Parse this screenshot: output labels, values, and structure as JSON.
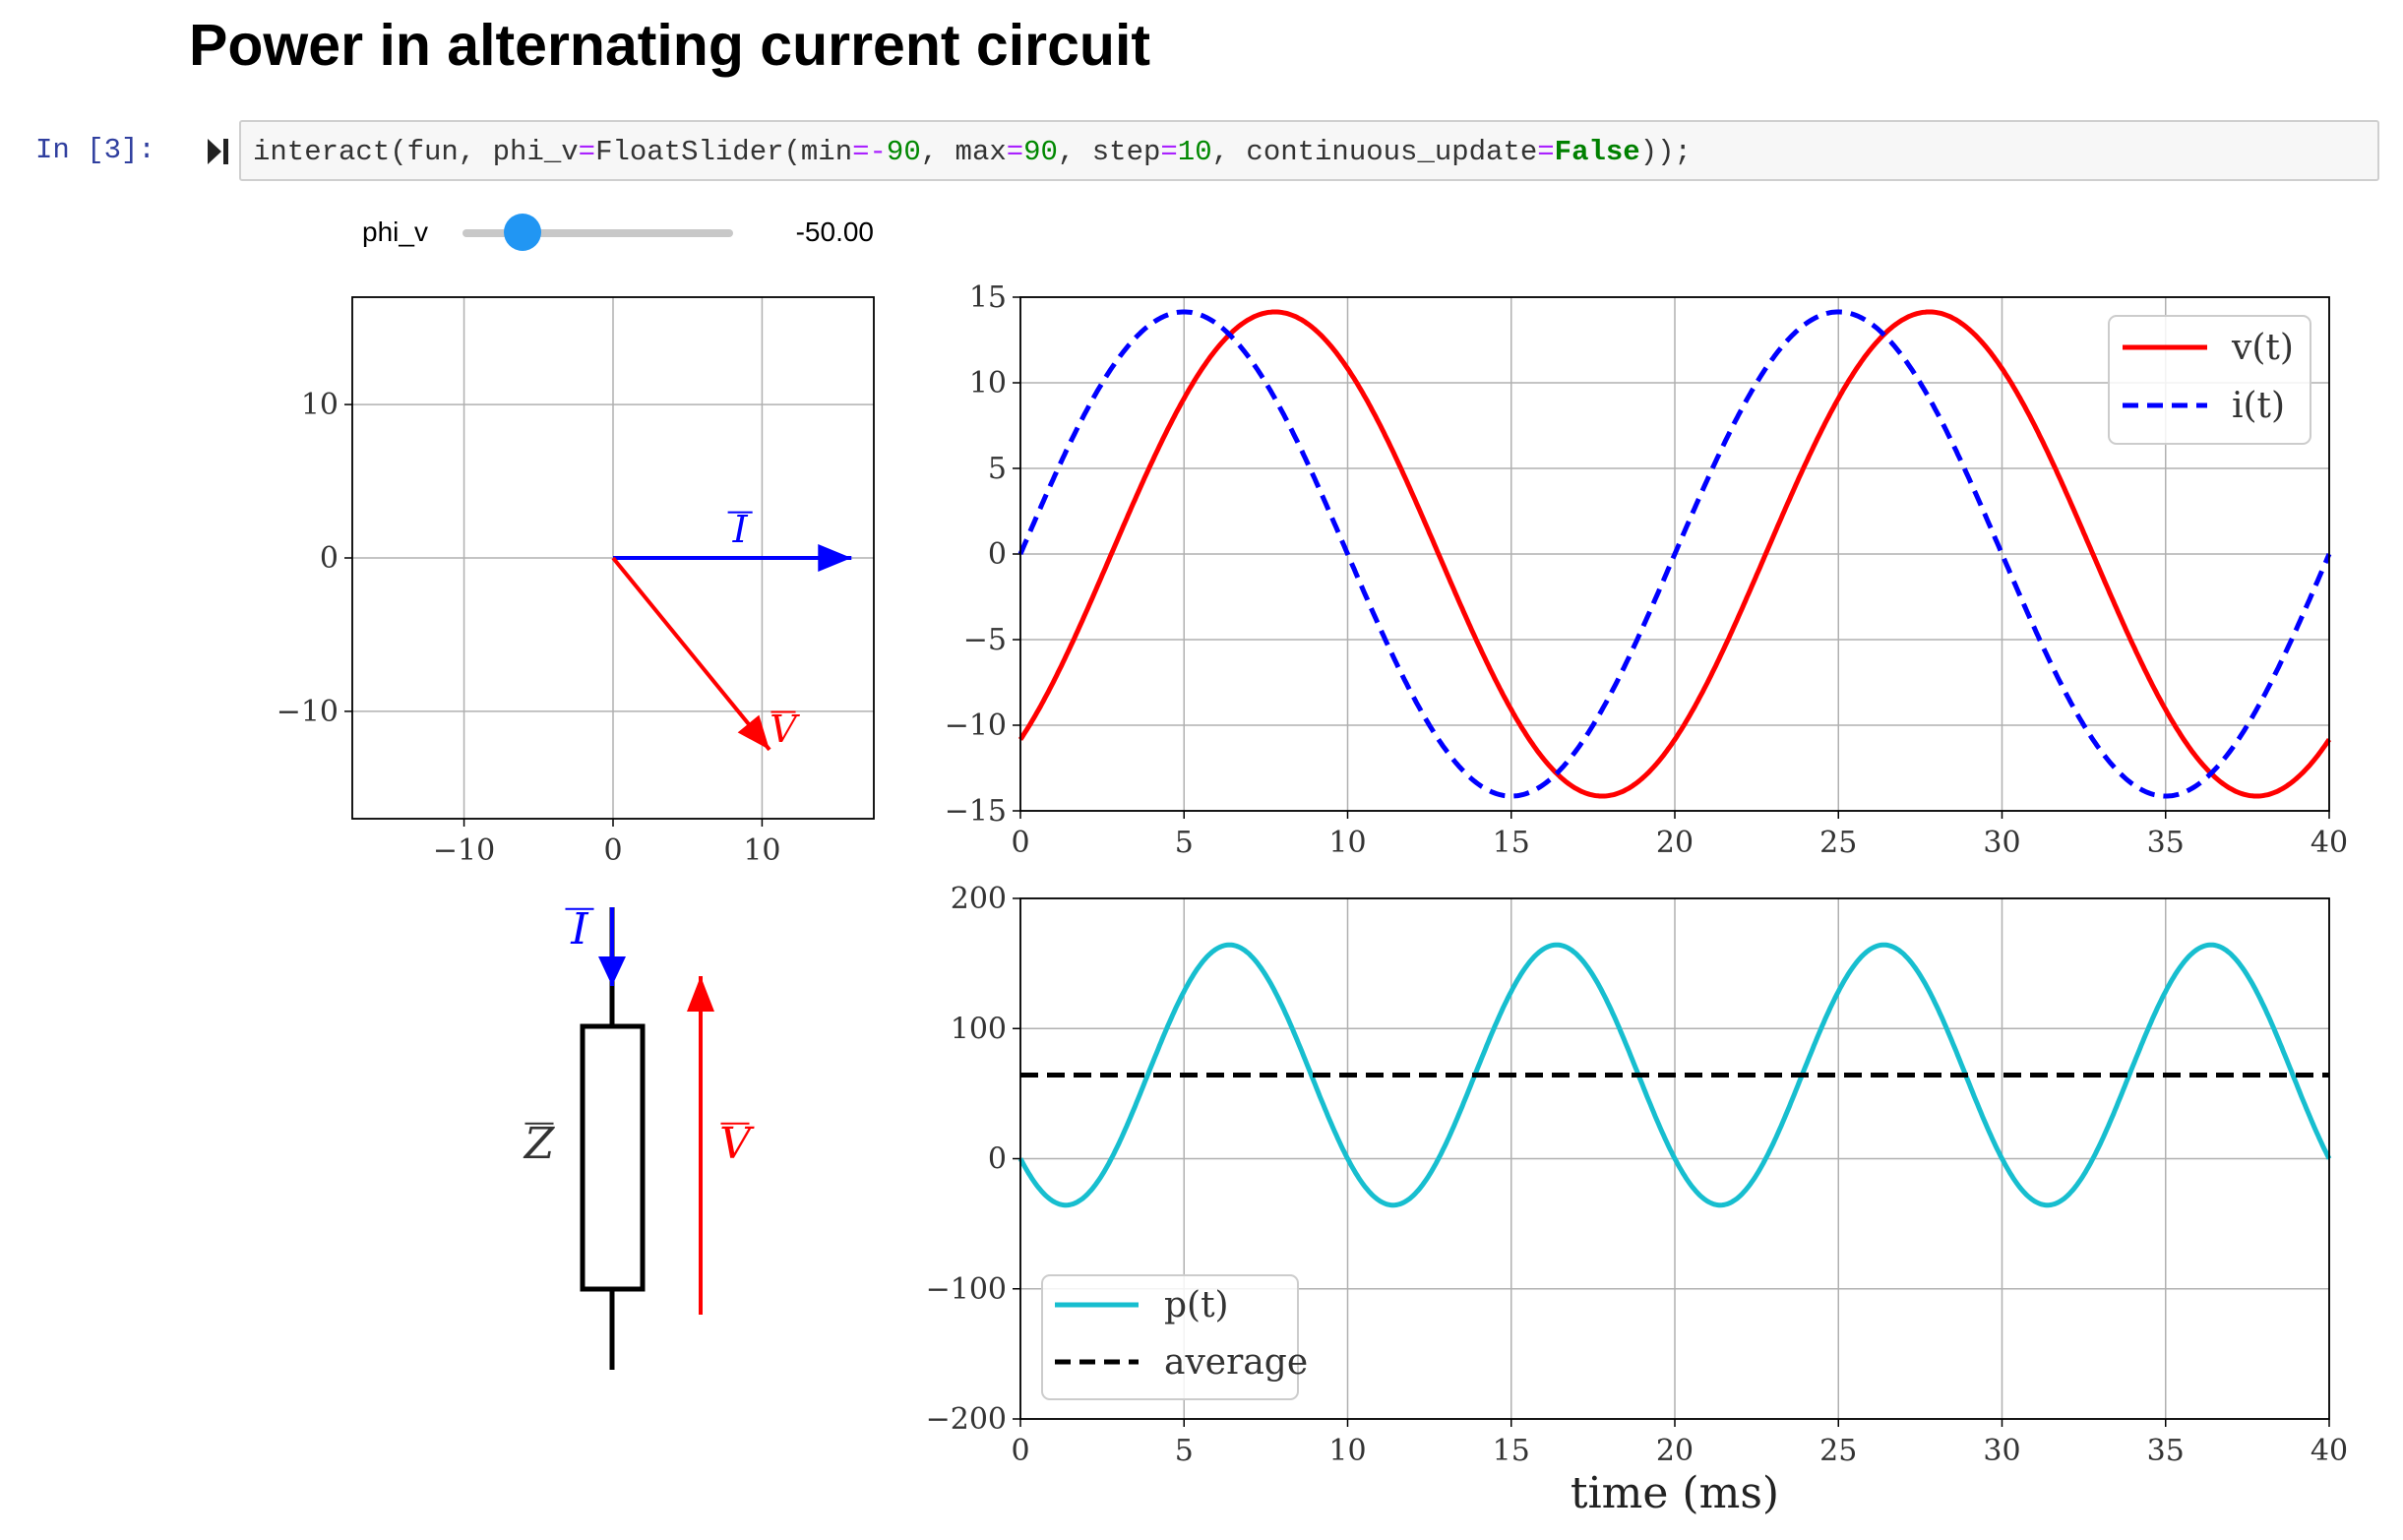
{
  "page": {
    "title": "Power in alternating current circuit"
  },
  "cell": {
    "prompt": "In [3]:",
    "code_tokens": [
      {
        "t": "interact(fun, phi_v",
        "c": ""
      },
      {
        "t": "=",
        "c": "kw"
      },
      {
        "t": "FloatSlider(min",
        "c": ""
      },
      {
        "t": "=-",
        "c": "kw"
      },
      {
        "t": "90",
        "c": "num"
      },
      {
        "t": ", max",
        "c": ""
      },
      {
        "t": "=",
        "c": "kw"
      },
      {
        "t": "90",
        "c": "num"
      },
      {
        "t": ", step",
        "c": ""
      },
      {
        "t": "=",
        "c": "kw"
      },
      {
        "t": "10",
        "c": "num"
      },
      {
        "t": ", continuous_update",
        "c": ""
      },
      {
        "t": "=",
        "c": "kw"
      },
      {
        "t": "False",
        "c": "const"
      },
      {
        "t": "));",
        "c": ""
      }
    ]
  },
  "widget": {
    "label": "phi_v",
    "value": -50,
    "readout": "-50.00",
    "min": -90,
    "max": 90,
    "step": 10
  },
  "colors": {
    "voltage": "#ff0000",
    "current": "#0000ff",
    "power": "#17becf",
    "average": "#000000",
    "slider": "#2196f3"
  },
  "chart_data": [
    {
      "type": "scatter",
      "name": "phasor-diagram",
      "xlim": [
        -17.5,
        17.5
      ],
      "ylim": [
        -17,
        17
      ],
      "xticks": [
        -10,
        0,
        10
      ],
      "xtick_labels": [
        "−10",
        "0",
        "10"
      ],
      "yticks": [
        10,
        0,
        -10
      ],
      "ytick_labels": [
        "10",
        "0",
        "−10"
      ],
      "grid": true,
      "phasors": [
        {
          "label": "I",
          "from": [
            0,
            0
          ],
          "to": [
            16,
            0
          ],
          "color": "#0000ff"
        },
        {
          "label": "V",
          "from": [
            0,
            0
          ],
          "to": [
            10.5,
            -12.5
          ],
          "color": "#ff0000"
        }
      ]
    },
    {
      "type": "line",
      "name": "voltage-current",
      "xlim": [
        0,
        40
      ],
      "ylim": [
        -15,
        15
      ],
      "xticks": [
        0,
        5,
        10,
        15,
        20,
        25,
        30,
        35,
        40
      ],
      "yticks": [
        15,
        10,
        5,
        0,
        -5,
        -10,
        -15
      ],
      "ytick_labels": [
        "15",
        "10",
        "5",
        "0",
        "−5",
        "−10",
        "−15"
      ],
      "grid": true,
      "legend": "top-right",
      "series": [
        {
          "name": "v(t)",
          "amplitude": 14.14,
          "frequency_hz": 50,
          "phase_deg": -50,
          "style": "solid",
          "color": "#ff0000"
        },
        {
          "name": "i(t)",
          "amplitude": 14.14,
          "frequency_hz": 50,
          "phase_deg": 0,
          "style": "dashed",
          "color": "#0000ff"
        }
      ]
    },
    {
      "type": "line",
      "name": "power",
      "xlim": [
        0,
        40
      ],
      "ylim": [
        -200,
        200
      ],
      "xticks": [
        0,
        5,
        10,
        15,
        20,
        25,
        30,
        35,
        40
      ],
      "yticks": [
        200,
        100,
        0,
        -100,
        -200
      ],
      "ytick_labels": [
        "200",
        "100",
        "0",
        "−100",
        "−200"
      ],
      "xlabel": "time (ms)",
      "grid": true,
      "legend": "bottom-left",
      "series": [
        {
          "name": "p(t)",
          "average": 64.3,
          "amplitude": 100,
          "frequency_hz": 100,
          "phase_deg": -50,
          "style": "solid",
          "color": "#17becf"
        },
        {
          "name": "average",
          "value": 64.3,
          "style": "dashed",
          "color": "#000000"
        }
      ]
    }
  ],
  "circuit": {
    "current_label": "I",
    "impedance_label": "Z",
    "voltage_label": "V"
  }
}
